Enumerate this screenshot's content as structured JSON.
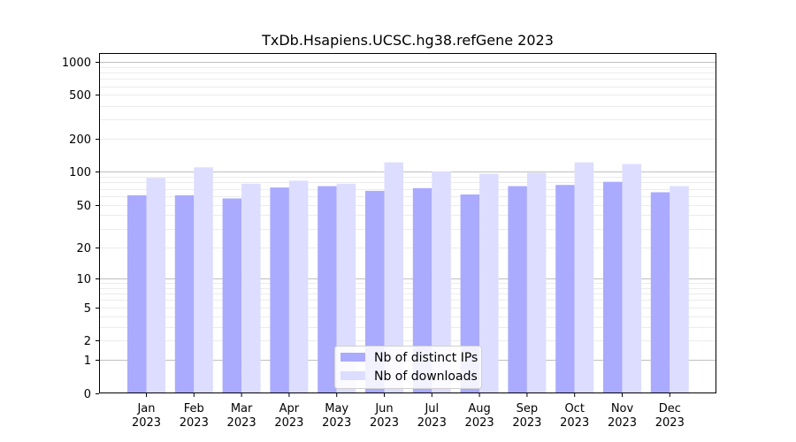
{
  "chart_data": {
    "type": "bar",
    "title": "TxDb.Hsapiens.UCSC.hg38.refGene 2023",
    "xlabel": "",
    "ylabel": "",
    "scale": "log1p",
    "ylim": [
      0,
      1200
    ],
    "yticks": [
      0,
      1,
      2,
      5,
      10,
      20,
      50,
      100,
      200,
      500,
      1000
    ],
    "categories": [
      [
        "Jan",
        "2023"
      ],
      [
        "Feb",
        "2023"
      ],
      [
        "Mar",
        "2023"
      ],
      [
        "Apr",
        "2023"
      ],
      [
        "May",
        "2023"
      ],
      [
        "Jun",
        "2023"
      ],
      [
        "Jul",
        "2023"
      ],
      [
        "Aug",
        "2023"
      ],
      [
        "Sep",
        "2023"
      ],
      [
        "Oct",
        "2023"
      ],
      [
        "Nov",
        "2023"
      ],
      [
        "Dec",
        "2023"
      ]
    ],
    "series": [
      {
        "name": "Nb of distinct IPs",
        "color": "#aaaaff",
        "values": [
          61,
          61,
          57,
          72,
          74,
          67,
          71,
          62,
          74,
          76,
          81,
          65
        ]
      },
      {
        "name": "Nb of downloads",
        "color": "#ddddff",
        "values": [
          88,
          110,
          78,
          83,
          78,
          122,
          101,
          96,
          98,
          122,
          118,
          74
        ]
      }
    ],
    "grid": true,
    "legend_position": "bottom-center"
  }
}
